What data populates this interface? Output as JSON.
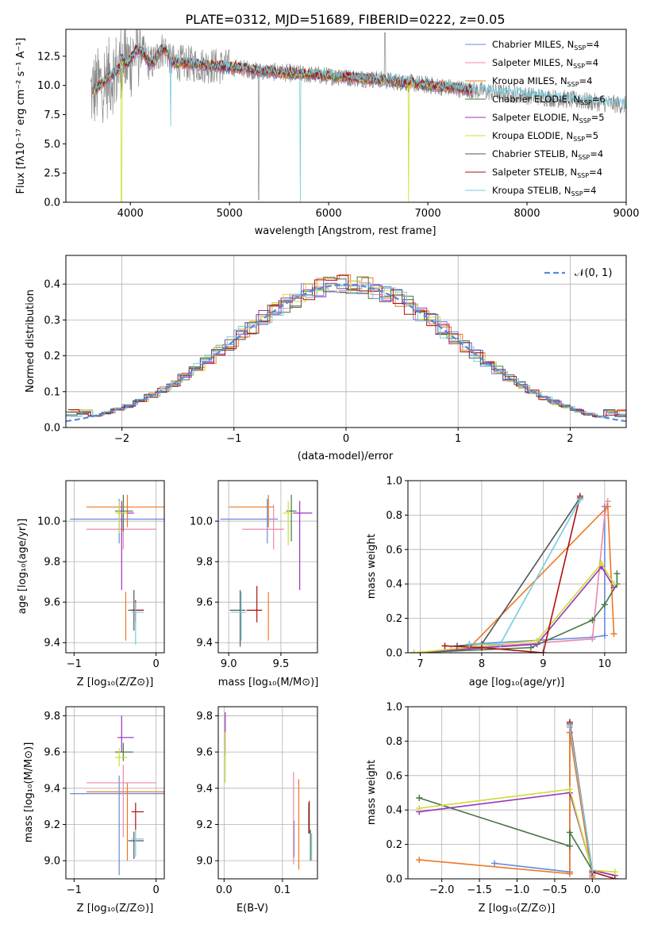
{
  "colors": {
    "series": [
      "#6688dd",
      "#ee88aa",
      "#ee7722",
      "#447744",
      "#9933bb",
      "#ccdd33",
      "#555555",
      "#aa1111",
      "#77ccdd"
    ],
    "spec_grey": "#888888",
    "gauss": "#5588dd",
    "grid": "#b0b0b0"
  },
  "chart_data": [
    {
      "id": "spectrum",
      "type": "line",
      "title": "PLATE=0312, MJD=51689, FIBERID=0222, z=0.05",
      "xlabel": "wavelength [Angstrom, rest frame]",
      "ylabel": "Flux [fλ10⁻¹⁷ erg cm⁻² s⁻¹ A⁻¹]",
      "xlim": [
        3350,
        9000
      ],
      "ylim": [
        0,
        14.8
      ],
      "xticks": [
        "4000",
        "5000",
        "6000",
        "7000",
        "8000",
        "9000"
      ],
      "yticks": [
        "0.0",
        "2.5",
        "5.0",
        "7.5",
        "10.0",
        "12.5"
      ],
      "legend_position": "right",
      "legend": [
        "Chabrier MILES, N_SSP=4",
        "Salpeter MILES, N_SSP=4",
        "Kroupa MILES, N_SSP=4",
        "Chabrier ELODIE, N_SSP=6",
        "Salpeter ELODIE, N_SSP=5",
        "Kroupa ELODIE, N_SSP=5",
        "Chabrier STELIB, N_SSP=4",
        "Salpeter STELIB, N_SSP=4",
        "Kroupa STELIB, N_SSP=4"
      ],
      "data_range": [
        3600,
        9000
      ],
      "model_range": [
        3620,
        7450
      ]
    },
    {
      "id": "residuals",
      "type": "histogram",
      "xlabel": "(data-model)/error",
      "ylabel": "Normed distribution",
      "xlim": [
        -2.5,
        2.5
      ],
      "ylim": [
        0,
        0.48
      ],
      "xticks": [
        "−2",
        "−1",
        "0",
        "1",
        "2"
      ],
      "yticks": [
        "0.0",
        "0.1",
        "0.2",
        "0.3",
        "0.4"
      ],
      "legend": "𝒩(0, 1)",
      "legend_position": "top-right",
      "bin_width": 0.1
    },
    {
      "id": "age-vs-Z",
      "type": "errorbar",
      "xlabel": "Z [log₁₀(Z/Z⊙)]",
      "ylabel": "age  [log₁₀(age/yr)]",
      "xlim": [
        -1.1,
        0.1
      ],
      "ylim": [
        9.35,
        10.2
      ],
      "xticks": [
        "−1",
        "0"
      ],
      "yticks": [
        "9.4",
        "9.6",
        "9.8",
        "10.0"
      ],
      "points": [
        {
          "c": 0,
          "x": -0.45,
          "y": 10.01,
          "xerr": [
            0.6,
            0.55
          ],
          "yerr": [
            0.12,
            0.1
          ]
        },
        {
          "c": 1,
          "x": -0.4,
          "y": 9.96,
          "xerr": [
            0.45,
            0.4
          ],
          "yerr": [
            0.1,
            0.08
          ]
        },
        {
          "c": 2,
          "x": -0.35,
          "y": 10.07,
          "xerr": [
            0.5,
            0.45
          ],
          "yerr": [
            0.1,
            0.06
          ]
        },
        {
          "c": 3,
          "x": -0.4,
          "y": 10.05,
          "xerr": [
            0.1,
            0.12
          ],
          "yerr": [
            0.1,
            0.08
          ]
        },
        {
          "c": 4,
          "x": -0.42,
          "y": 10.04,
          "xerr": [
            0.05,
            0.15
          ],
          "yerr": [
            0.38,
            0.06
          ]
        },
        {
          "c": 5,
          "x": -0.45,
          "y": 10.04,
          "xerr": [
            0.05,
            0.1
          ],
          "yerr": [
            0.1,
            0.06
          ]
        },
        {
          "c": 6,
          "x": -0.27,
          "y": 9.56,
          "xerr": [
            0.07,
            0.12
          ],
          "yerr": [
            0.1,
            0.1
          ]
        },
        {
          "c": 7,
          "x": -0.25,
          "y": 9.56,
          "xerr": [
            0.05,
            0.1
          ],
          "yerr": [
            0.06,
            0.05
          ]
        },
        {
          "c": 8,
          "x": -0.25,
          "y": 9.55,
          "xerr": [
            0.05,
            0.1
          ],
          "yerr": [
            0.16,
            0.05
          ]
        },
        {
          "c": 2,
          "x": -0.37,
          "y": 9.6,
          "xerr": [
            0.0,
            0.0
          ],
          "yerr": [
            0.19,
            0.05
          ]
        }
      ]
    },
    {
      "id": "age-vs-mass",
      "type": "errorbar",
      "xlabel": "mass [log₁₀(M/M⊙)]",
      "ylabel": "",
      "xlim": [
        8.9,
        9.85
      ],
      "ylim": [
        9.35,
        10.2
      ],
      "xticks": [
        "9.0",
        "9.5"
      ],
      "yticks": [
        "9.4",
        "9.6",
        "9.8",
        "10.0"
      ],
      "points": [
        {
          "c": 0,
          "x": 9.37,
          "y": 10.01,
          "xerr": [
            0.45,
            0.1
          ],
          "yerr": [
            0.12,
            0.1
          ]
        },
        {
          "c": 1,
          "x": 9.43,
          "y": 9.96,
          "xerr": [
            0.3,
            0.1
          ],
          "yerr": [
            0.1,
            0.12
          ]
        },
        {
          "c": 2,
          "x": 9.38,
          "y": 10.07,
          "xerr": [
            0.38,
            0.05
          ],
          "yerr": [
            0.1,
            0.06
          ]
        },
        {
          "c": 3,
          "x": 9.6,
          "y": 10.05,
          "xerr": [
            0.05,
            0.05
          ],
          "yerr": [
            0.15,
            0.08
          ]
        },
        {
          "c": 4,
          "x": 9.68,
          "y": 10.04,
          "xerr": [
            0.08,
            0.12
          ],
          "yerr": [
            0.38,
            0.06
          ]
        },
        {
          "c": 5,
          "x": 9.57,
          "y": 10.04,
          "xerr": [
            0.05,
            0.05
          ],
          "yerr": [
            0.16,
            0.06
          ]
        },
        {
          "c": 6,
          "x": 9.11,
          "y": 9.56,
          "xerr": [
            0.1,
            0.05
          ],
          "yerr": [
            0.18,
            0.1
          ]
        },
        {
          "c": 7,
          "x": 9.27,
          "y": 9.56,
          "xerr": [
            0.1,
            0.05
          ],
          "yerr": [
            0.06,
            0.12
          ]
        },
        {
          "c": 8,
          "x": 9.12,
          "y": 9.55,
          "xerr": [
            0.1,
            0.05
          ],
          "yerr": [
            0.14,
            0.1
          ]
        },
        {
          "c": 2,
          "x": 9.38,
          "y": 9.6,
          "xerr": [
            0.0,
            0.0
          ],
          "yerr": [
            0.19,
            0.05
          ]
        }
      ]
    },
    {
      "id": "weight-vs-age",
      "type": "line",
      "xlabel": "age  [log₁₀(age/yr)]",
      "ylabel": "mass weight",
      "xlim": [
        6.8,
        10.35
      ],
      "ylim": [
        0,
        1.0
      ],
      "xticks": [
        "7",
        "8",
        "9",
        "10"
      ],
      "yticks": [
        "0.0",
        "0.2",
        "0.4",
        "0.6",
        "0.8",
        "1.0"
      ],
      "series": [
        {
          "c": 0,
          "x": [
            7.8,
            9.8,
            10.0,
            10.0
          ],
          "y": [
            0.05,
            0.09,
            0.1,
            0.85
          ]
        },
        {
          "c": 1,
          "x": [
            7.5,
            9.8,
            10.0,
            10.05
          ],
          "y": [
            0.02,
            0.08,
            0.8,
            0.88
          ]
        },
        {
          "c": 2,
          "x": [
            6.9,
            7.8,
            10.05,
            10.15
          ],
          "y": [
            0.0,
            0.03,
            0.85,
            0.11
          ]
        },
        {
          "c": 3,
          "x": [
            6.9,
            8.8,
            9.8,
            10.0,
            10.2,
            10.2
          ],
          "y": [
            0.0,
            0.03,
            0.19,
            0.28,
            0.4,
            0.46
          ]
        },
        {
          "c": 4,
          "x": [
            6.9,
            8.9,
            9.95,
            10.15
          ],
          "y": [
            0.0,
            0.05,
            0.5,
            0.38
          ]
        },
        {
          "c": 5,
          "x": [
            6.9,
            8.9,
            9.95,
            10.15
          ],
          "y": [
            0.0,
            0.07,
            0.52,
            0.4
          ]
        },
        {
          "c": 6,
          "x": [
            7.6,
            8.0,
            9.6
          ],
          "y": [
            0.04,
            0.05,
            0.9
          ]
        },
        {
          "c": 7,
          "x": [
            7.4,
            8.0,
            9.0,
            9.6
          ],
          "y": [
            0.04,
            0.03,
            0.0,
            0.91
          ]
        },
        {
          "c": 8,
          "x": [
            7.8,
            8.3,
            9.6
          ],
          "y": [
            0.05,
            0.05,
            0.89
          ]
        }
      ]
    },
    {
      "id": "mass-vs-Z",
      "type": "errorbar",
      "xlabel": "Z [log₁₀(Z/Z⊙)]",
      "ylabel": "mass [log₁₀(M/M⊙)]",
      "xlim": [
        -1.1,
        0.1
      ],
      "ylim": [
        8.9,
        9.85
      ],
      "xticks": [
        "−1",
        "0"
      ],
      "yticks": [
        "9.0",
        "9.2",
        "9.4",
        "9.6",
        "9.8"
      ],
      "points": [
        {
          "c": 0,
          "x": -0.45,
          "y": 9.37,
          "xerr": [
            0.6,
            0.55
          ],
          "yerr": [
            0.45,
            0.1
          ]
        },
        {
          "c": 1,
          "x": -0.4,
          "y": 9.43,
          "xerr": [
            0.45,
            0.4
          ],
          "yerr": [
            0.3,
            0.1
          ]
        },
        {
          "c": 2,
          "x": -0.35,
          "y": 9.38,
          "xerr": [
            0.5,
            0.45
          ],
          "yerr": [
            0.38,
            0.05
          ]
        },
        {
          "c": 3,
          "x": -0.4,
          "y": 9.6,
          "xerr": [
            0.1,
            0.12
          ],
          "yerr": [
            0.05,
            0.05
          ]
        },
        {
          "c": 4,
          "x": -0.42,
          "y": 9.68,
          "xerr": [
            0.05,
            0.15
          ],
          "yerr": [
            0.08,
            0.12
          ]
        },
        {
          "c": 5,
          "x": -0.45,
          "y": 9.57,
          "xerr": [
            0.05,
            0.1
          ],
          "yerr": [
            0.05,
            0.05
          ]
        },
        {
          "c": 6,
          "x": -0.27,
          "y": 9.11,
          "xerr": [
            0.07,
            0.12
          ],
          "yerr": [
            0.1,
            0.05
          ]
        },
        {
          "c": 7,
          "x": -0.25,
          "y": 9.27,
          "xerr": [
            0.05,
            0.1
          ],
          "yerr": [
            0.1,
            0.05
          ]
        },
        {
          "c": 8,
          "x": -0.25,
          "y": 9.12,
          "xerr": [
            0.05,
            0.1
          ],
          "yerr": [
            0.1,
            0.05
          ]
        }
      ]
    },
    {
      "id": "mass-vs-ebv",
      "type": "errorbar",
      "xlabel": "E(B-V)",
      "ylabel": "",
      "xlim": [
        -0.01,
        0.16
      ],
      "ylim": [
        8.9,
        9.85
      ],
      "xticks": [
        "0.0",
        "0.1"
      ],
      "yticks": [
        "9.0",
        "9.2",
        "9.4",
        "9.6",
        "9.8"
      ],
      "points": [
        {
          "c": 0,
          "x": 0.12,
          "y": 9.12,
          "xerr": [
            0,
            0
          ],
          "yerr": [
            0.1,
            0.1
          ]
        },
        {
          "c": 1,
          "x": 0.119,
          "y": 9.3,
          "xerr": [
            0,
            0
          ],
          "yerr": [
            0.32,
            0.19
          ]
        },
        {
          "c": 2,
          "x": 0.128,
          "y": 9.2,
          "xerr": [
            0,
            0
          ],
          "yerr": [
            0.25,
            0.25
          ]
        },
        {
          "c": 3,
          "x": 0.148,
          "y": 9.08,
          "xerr": [
            0,
            0
          ],
          "yerr": [
            0.08,
            0.09
          ]
        },
        {
          "c": 4,
          "x": 0.002,
          "y": 9.68,
          "xerr": [
            0,
            0
          ],
          "yerr": [
            0.1,
            0.14
          ]
        },
        {
          "c": 5,
          "x": 0.002,
          "y": 9.57,
          "xerr": [
            0,
            0
          ],
          "yerr": [
            0.14,
            0.14
          ]
        },
        {
          "c": 6,
          "x": 0.145,
          "y": 9.2,
          "xerr": [
            0,
            0
          ],
          "yerr": [
            0.05,
            0.12
          ]
        },
        {
          "c": 7,
          "x": 0.146,
          "y": 9.25,
          "xerr": [
            0,
            0
          ],
          "yerr": [
            0.1,
            0.08
          ]
        },
        {
          "c": 8,
          "x": 0.15,
          "y": 9.1,
          "xerr": [
            0,
            0
          ],
          "yerr": [
            0.1,
            0.05
          ]
        }
      ]
    },
    {
      "id": "weight-vs-Z",
      "type": "line",
      "xlabel": "Z [log₁₀(Z/Z⊙)]",
      "ylabel": "mass weight",
      "xlim": [
        -2.45,
        0.45
      ],
      "ylim": [
        0,
        1.0
      ],
      "xticks": [
        "−2.0",
        "−1.5",
        "−1.0",
        "−0.5",
        "0.0"
      ],
      "yticks": [
        "0.0",
        "0.2",
        "0.4",
        "0.6",
        "0.8",
        "1.0"
      ],
      "series": [
        {
          "c": 0,
          "x": [
            -1.3,
            -0.3,
            -0.3,
            0.0
          ],
          "y": [
            0.09,
            0.04,
            0.85,
            0.02
          ]
        },
        {
          "c": 1,
          "x": [
            -0.3,
            -0.3,
            0.0
          ],
          "y": [
            0.03,
            0.88,
            0.03
          ]
        },
        {
          "c": 2,
          "x": [
            -2.3,
            -0.3,
            -0.3,
            0.0
          ],
          "y": [
            0.11,
            0.03,
            0.85,
            0.01
          ]
        },
        {
          "c": 3,
          "x": [
            -2.3,
            -0.3,
            -0.3,
            0.0,
            0.3
          ],
          "y": [
            0.47,
            0.19,
            0.27,
            0.05,
            0.02
          ]
        },
        {
          "c": 4,
          "x": [
            -2.3,
            -0.3,
            0.0,
            0.3
          ],
          "y": [
            0.39,
            0.5,
            0.05,
            0.02
          ]
        },
        {
          "c": 5,
          "x": [
            -2.3,
            -0.3,
            0.0,
            0.3
          ],
          "y": [
            0.41,
            0.52,
            0.05,
            0.04
          ]
        },
        {
          "c": 6,
          "x": [
            -0.3,
            0.0
          ],
          "y": [
            0.9,
            0.05
          ]
        },
        {
          "c": 7,
          "x": [
            -0.3,
            0.0,
            0.3
          ],
          "y": [
            0.91,
            0.04,
            0.0
          ]
        },
        {
          "c": 8,
          "x": [
            -0.3,
            0.0
          ],
          "y": [
            0.89,
            0.05
          ]
        }
      ]
    }
  ]
}
